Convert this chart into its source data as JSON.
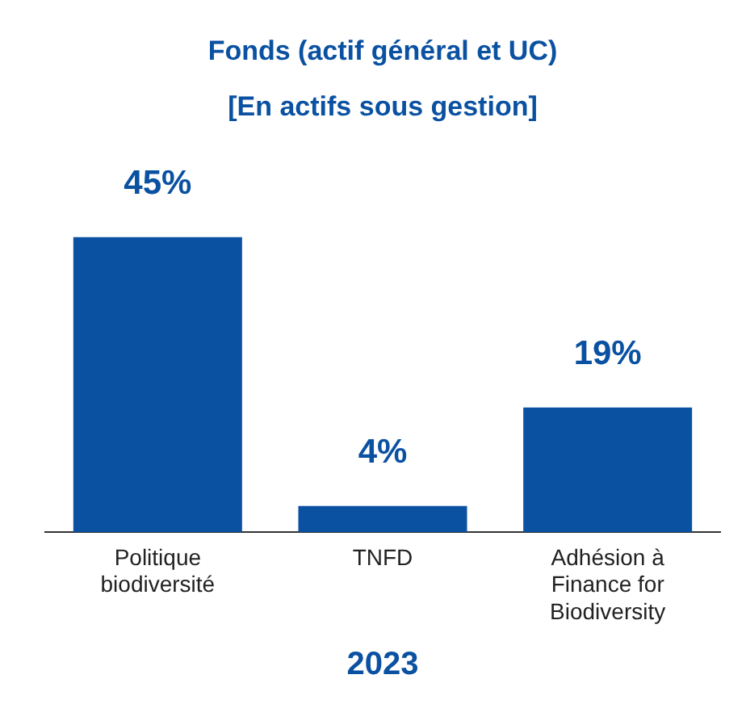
{
  "chart_data": {
    "type": "bar",
    "title": "Fonds (actif général et UC)",
    "subtitle": "[En actifs sous gestion]",
    "xlabel": "2023",
    "categories": [
      "Politique biodiversité",
      "TNFD",
      "Adhésion à Finance for Biodiversity"
    ],
    "values": [
      45,
      4,
      19
    ],
    "value_labels": [
      "45%",
      "4%",
      "19%"
    ],
    "color": "#0a51a1",
    "grid": false,
    "legend": false
  }
}
